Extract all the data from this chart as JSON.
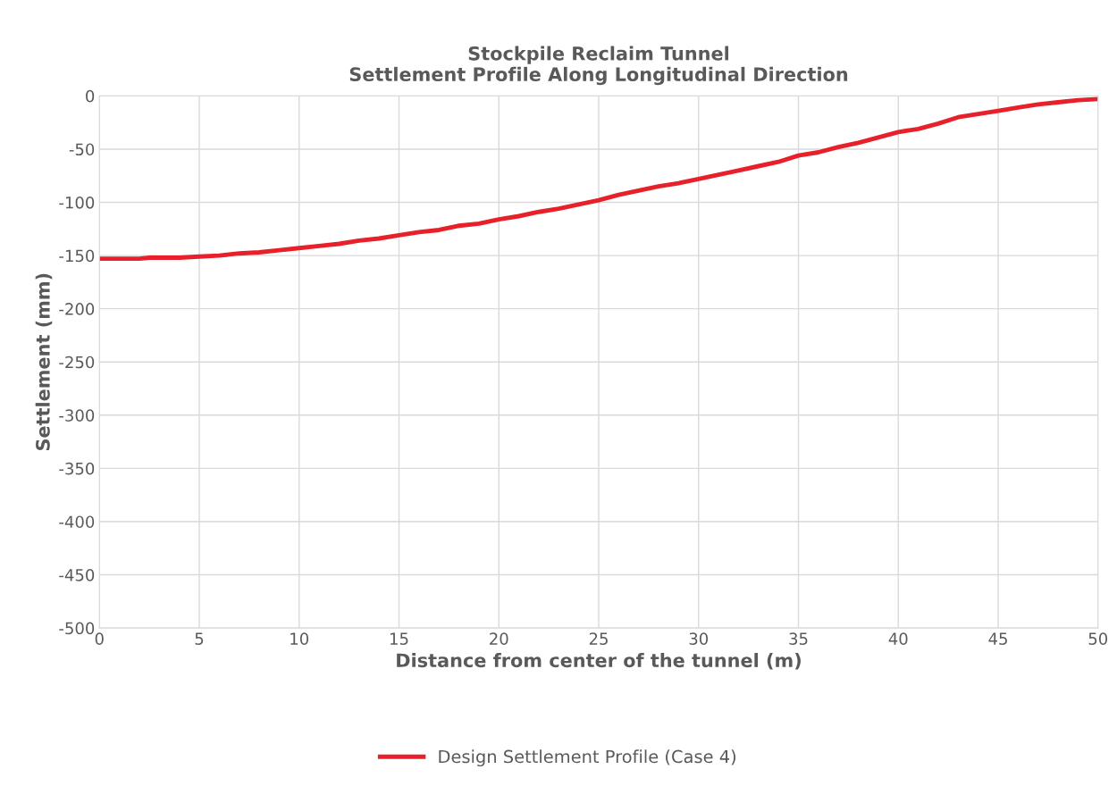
{
  "chart_data": {
    "type": "line",
    "title": "Stockpile Reclaim Tunnel\nSettlement Profile Along Longitudinal Direction",
    "xlabel": "Distance from center of the tunnel (m)",
    "ylabel": "Settlement (mm)",
    "x": [
      0,
      2,
      2.5,
      4,
      5,
      6,
      7,
      8,
      9,
      10,
      11,
      12,
      13,
      14,
      15,
      16,
      17,
      18,
      19,
      20,
      21,
      22,
      23,
      24,
      25,
      26,
      27,
      28,
      29,
      30,
      31,
      32,
      33,
      34,
      35,
      36,
      37,
      38,
      39,
      40,
      41,
      42,
      43,
      44,
      45,
      46,
      47,
      48,
      49,
      50
    ],
    "series": [
      {
        "name": "Design Settlement Profile (Case 4)",
        "color": "#e8202a",
        "values": [
          -153,
          -153,
          -152,
          -152,
          -151,
          -150,
          -148,
          -147,
          -145,
          -143,
          -141,
          -139,
          -136,
          -134,
          -131,
          -128,
          -126,
          -122,
          -120,
          -116,
          -113,
          -109,
          -106,
          -102,
          -98,
          -93,
          -89,
          -85,
          -82,
          -78,
          -74,
          -70,
          -66,
          -62,
          -56,
          -53,
          -48,
          -44,
          -39,
          -34,
          -31,
          -26,
          -20,
          -17,
          -14,
          -11,
          -8,
          -6,
          -4,
          -3
        ]
      }
    ],
    "xlim": [
      0,
      50
    ],
    "xticks": [
      0,
      5,
      10,
      15,
      20,
      25,
      30,
      35,
      40,
      45,
      50
    ],
    "ylim": [
      -500,
      0
    ],
    "yticks": [
      -500,
      -450,
      -400,
      -350,
      -300,
      -250,
      -200,
      -150,
      -100,
      -50,
      0
    ],
    "grid": true,
    "legend": "bottom",
    "marker": "none",
    "line_style": "solid"
  }
}
